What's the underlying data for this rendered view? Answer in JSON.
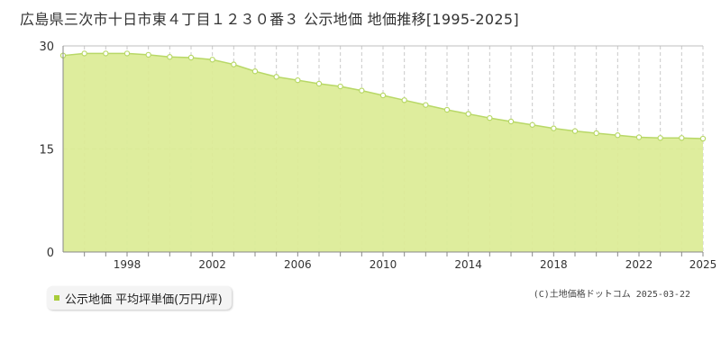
{
  "title": "広島県三次市十日市東４丁目１２３０番３ 公示地価 地価推移[1995-2025]",
  "copyright": "(C)土地価格ドットコム 2025-03-22",
  "chart_data": {
    "type": "area",
    "title": "広島県三次市十日市東４丁目１２３０番３ 公示地価 地価推移[1995-2025]",
    "xlim": [
      1995,
      2025
    ],
    "ylim": [
      0,
      30
    ],
    "y_ticks": [
      0,
      15,
      30
    ],
    "x_tick_labels": [
      1998,
      2002,
      2006,
      2010,
      2014,
      2018,
      2022,
      2025
    ],
    "grid": true,
    "legend_position": "bottom-left",
    "colors": {
      "fill": "#dcec98",
      "line": "#b8d867",
      "marker": "#ffffff",
      "legend": "#a8cc3a"
    },
    "series": [
      {
        "name": "公示地価 平均坪単価(万円/坪)",
        "x": [
          1995,
          1996,
          1997,
          1998,
          1999,
          2000,
          2001,
          2002,
          2003,
          2004,
          2005,
          2006,
          2007,
          2008,
          2009,
          2010,
          2011,
          2012,
          2013,
          2014,
          2015,
          2016,
          2017,
          2018,
          2019,
          2020,
          2021,
          2022,
          2023,
          2024,
          2025
        ],
        "values": [
          28.6,
          28.9,
          28.9,
          28.9,
          28.7,
          28.4,
          28.3,
          28.0,
          27.3,
          26.3,
          25.5,
          25.0,
          24.5,
          24.1,
          23.5,
          22.8,
          22.1,
          21.4,
          20.7,
          20.1,
          19.5,
          19.0,
          18.5,
          18.0,
          17.6,
          17.3,
          17.0,
          16.7,
          16.6,
          16.6,
          16.5
        ]
      }
    ]
  }
}
